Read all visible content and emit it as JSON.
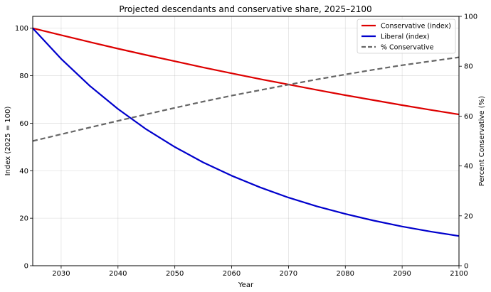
{
  "chart_data": {
    "type": "line",
    "title": "Projected descendants and conservative share, 2025–2100",
    "xlabel": "Year",
    "ylabel_left": "Index (2025 = 100)",
    "ylabel_right": "Percent Conservative (%)",
    "xlim": [
      2025,
      2100
    ],
    "ylim_left": [
      0,
      105
    ],
    "ylim_right": [
      0,
      100
    ],
    "x_ticks": [
      2030,
      2040,
      2050,
      2060,
      2070,
      2080,
      2090,
      2100
    ],
    "y_ticks_left": [
      0,
      20,
      40,
      60,
      80,
      100
    ],
    "y_ticks_right": [
      0,
      20,
      40,
      60,
      80,
      100
    ],
    "grid": true,
    "legend_position": "top-right",
    "x": [
      2025,
      2030,
      2035,
      2040,
      2045,
      2050,
      2055,
      2060,
      2065,
      2070,
      2075,
      2080,
      2085,
      2090,
      2095,
      2100
    ],
    "series": [
      {
        "name": "Conservative (index)",
        "axis": "left",
        "color": "#dd0000",
        "style": "solid",
        "values": [
          100,
          97.1,
          94.2,
          91.4,
          88.7,
          86.1,
          83.5,
          81.0,
          78.6,
          76.3,
          74.0,
          71.8,
          69.7,
          67.6,
          65.6,
          63.7
        ]
      },
      {
        "name": "Liberal (index)",
        "axis": "left",
        "color": "#0000cc",
        "style": "solid",
        "values": [
          100,
          87.1,
          75.8,
          66.0,
          57.4,
          50.0,
          43.5,
          37.9,
          33.0,
          28.7,
          25.0,
          21.8,
          19.0,
          16.5,
          14.4,
          12.5
        ]
      },
      {
        "name": "% Conservative",
        "axis": "right",
        "color": "#666666",
        "style": "dashed",
        "values": [
          50.0,
          52.7,
          55.4,
          58.1,
          60.7,
          63.3,
          65.8,
          68.2,
          70.4,
          72.6,
          74.7,
          76.7,
          78.6,
          80.4,
          82.0,
          83.6
        ]
      }
    ]
  }
}
